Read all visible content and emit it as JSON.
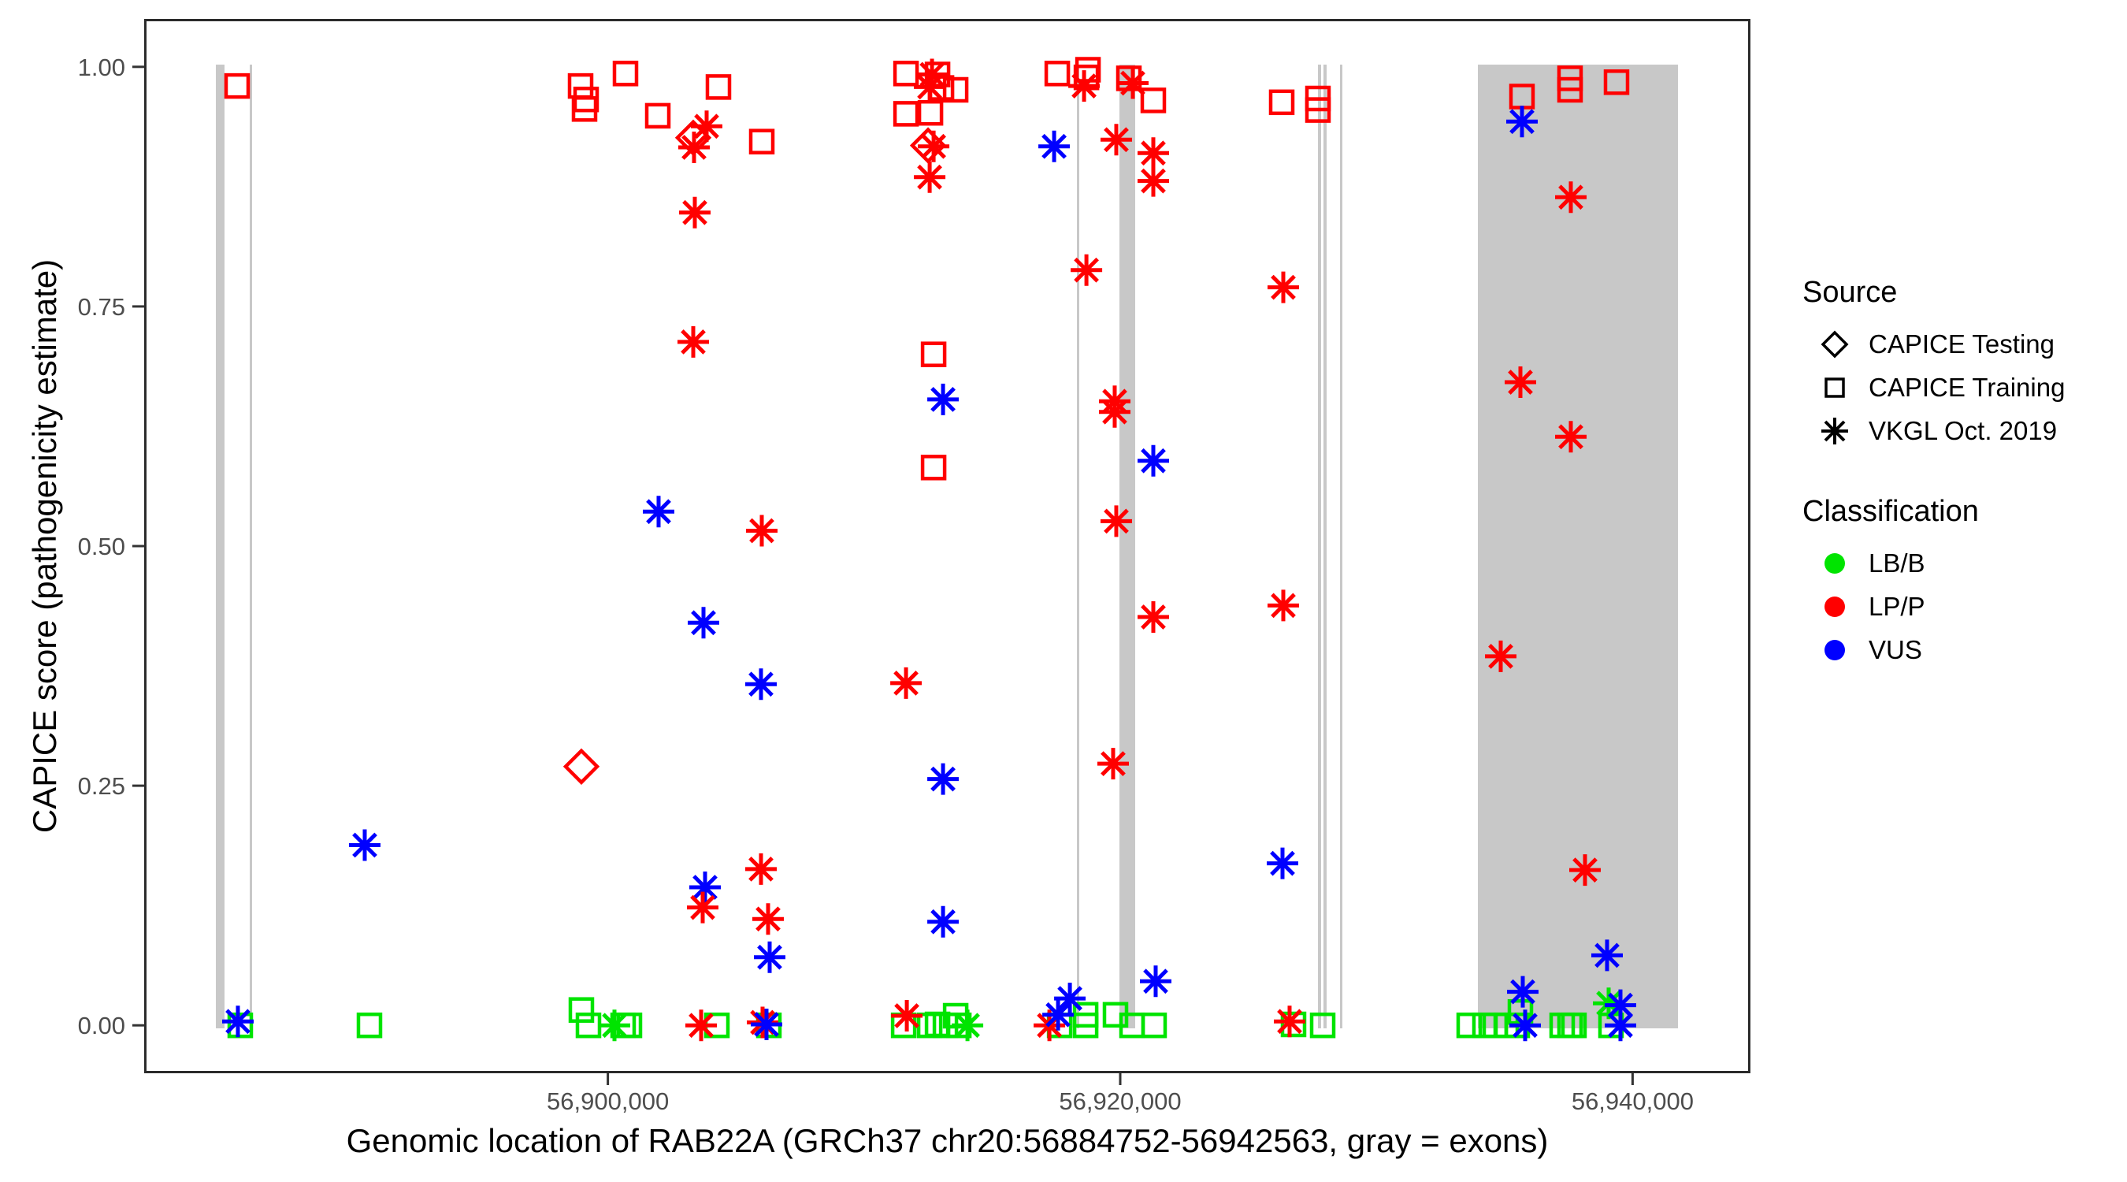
{
  "figure": {
    "x_axis_title": "Genomic location of RAB22A (GRCh37 chr20:56884752-56942563, gray = exons)",
    "y_axis_title": "CAPICE score (pathogenicity estimate)"
  },
  "legend": {
    "source_title": "Source",
    "source_items": [
      {
        "label": "CAPICE Testing",
        "shape": "diamond"
      },
      {
        "label": "CAPICE Training",
        "shape": "square"
      },
      {
        "label": "VKGL Oct. 2019",
        "shape": "asterisk"
      }
    ],
    "classification_title": "Classification",
    "classification_items": [
      {
        "label": "LB/B",
        "color": "#00E400"
      },
      {
        "label": "LP/P",
        "color": "#FF0000"
      },
      {
        "label": "VUS",
        "color": "#0000FF"
      }
    ]
  },
  "colors": {
    "exon_gray": "#C8C8C8",
    "axis": "#333333",
    "tick_text": "#4d4d4d",
    "lbb_green": "#00E400",
    "lpp_red": "#FF0000",
    "vus_blue": "#0000FF"
  },
  "chart_data": {
    "type": "scatter",
    "title": "",
    "xlabel": "Genomic location of RAB22A (GRCh37 chr20:56884752-56942563, gray = exons)",
    "ylabel": "CAPICE score (pathogenicity estimate)",
    "x_domain": [
      56881900,
      56944600
    ],
    "y_domain": [
      -0.05,
      1.05
    ],
    "x_ticks": [
      {
        "value": 56900000,
        "label": "56,900,000"
      },
      {
        "value": 56920000,
        "label": "56,920,000"
      },
      {
        "value": 56940000,
        "label": "56,940,000"
      }
    ],
    "y_ticks": [
      {
        "value": 0.0,
        "label": "0.00"
      },
      {
        "value": 0.25,
        "label": "0.25"
      },
      {
        "value": 0.5,
        "label": "0.50"
      },
      {
        "value": 0.75,
        "label": "0.75"
      },
      {
        "value": 1.0,
        "label": "1.00"
      }
    ],
    "grid": false,
    "legend_position": "right",
    "source_codes": {
      "TE": "CAPICE Testing",
      "TR": "CAPICE Training",
      "VK": "VKGL Oct. 2019"
    },
    "shape_by_source": {
      "CAPICE Testing": "diamond",
      "CAPICE Training": "square",
      "VKGL Oct. 2019": "asterisk"
    },
    "class_codes": {
      "LBB": "LB/B",
      "LPP": "LP/P",
      "VUS": "VUS"
    },
    "color_by_class": {
      "LB/B": "#00E400",
      "LP/P": "#FF0000",
      "VUS": "#0000FF"
    },
    "gene": {
      "name": "RAB22A",
      "assembly": "GRCh37",
      "chrom": "chr20",
      "start": 56884752,
      "end": 56942563
    },
    "exons_bp": [
      [
        56884698,
        56885036
      ],
      [
        56886020,
        56886097
      ],
      [
        56918307,
        56918384
      ],
      [
        56919968,
        56920583
      ],
      [
        56927718,
        56927825
      ],
      [
        56927933,
        56928041
      ],
      [
        56928579,
        56928671
      ],
      [
        56933960,
        56941770
      ]
    ],
    "points": [
      {
        "bp": 56885529,
        "score": 0.98,
        "src": "TR",
        "cls": "LPP"
      },
      {
        "bp": 56885560,
        "score": 0.004,
        "src": "VK",
        "cls": "VUS"
      },
      {
        "bp": 56885652,
        "score": 0.0,
        "src": "TR",
        "cls": "LBB"
      },
      {
        "bp": 56890510,
        "score": 0.188,
        "src": "VK",
        "cls": "VUS"
      },
      {
        "bp": 56890695,
        "score": 0.0,
        "src": "TR",
        "cls": "LBB"
      },
      {
        "bp": 56900688,
        "score": 0.993,
        "src": "TR",
        "cls": "LPP"
      },
      {
        "bp": 56898936,
        "score": 0.98,
        "src": "TR",
        "cls": "LPP"
      },
      {
        "bp": 56899151,
        "score": 0.966,
        "src": "TR",
        "cls": "LPP"
      },
      {
        "bp": 56899089,
        "score": 0.956,
        "src": "TR",
        "cls": "LPP"
      },
      {
        "bp": 56904317,
        "score": 0.979,
        "src": "TR",
        "cls": "LPP"
      },
      {
        "bp": 56901949,
        "score": 0.949,
        "src": "TR",
        "cls": "LPP"
      },
      {
        "bp": 56903856,
        "score": 0.938,
        "src": "VK",
        "cls": "LPP"
      },
      {
        "bp": 56903333,
        "score": 0.926,
        "src": "TE",
        "cls": "LPP"
      },
      {
        "bp": 56903364,
        "score": 0.916,
        "src": "VK",
        "cls": "LPP"
      },
      {
        "bp": 56906008,
        "score": 0.922,
        "src": "TR",
        "cls": "LPP"
      },
      {
        "bp": 56903395,
        "score": 0.848,
        "src": "VK",
        "cls": "LPP"
      },
      {
        "bp": 56903333,
        "score": 0.713,
        "src": "VK",
        "cls": "LPP"
      },
      {
        "bp": 56901980,
        "score": 0.536,
        "src": "VK",
        "cls": "VUS"
      },
      {
        "bp": 56906008,
        "score": 0.516,
        "src": "VK",
        "cls": "LPP"
      },
      {
        "bp": 56903733,
        "score": 0.42,
        "src": "VK",
        "cls": "VUS"
      },
      {
        "bp": 56905977,
        "score": 0.356,
        "src": "VK",
        "cls": "VUS"
      },
      {
        "bp": 56898966,
        "score": 0.27,
        "src": "TE",
        "cls": "LPP"
      },
      {
        "bp": 56905977,
        "score": 0.163,
        "src": "VK",
        "cls": "LPP"
      },
      {
        "bp": 56903794,
        "score": 0.144,
        "src": "VK",
        "cls": "VUS"
      },
      {
        "bp": 56903702,
        "score": 0.123,
        "src": "VK",
        "cls": "LPP"
      },
      {
        "bp": 56906254,
        "score": 0.111,
        "src": "VK",
        "cls": "LPP"
      },
      {
        "bp": 56906315,
        "score": 0.071,
        "src": "VK",
        "cls": "VUS"
      },
      {
        "bp": 56898966,
        "score": 0.016,
        "src": "TR",
        "cls": "LBB"
      },
      {
        "bp": 56899243,
        "score": 0.0,
        "src": "TR",
        "cls": "LBB"
      },
      {
        "bp": 56900257,
        "score": 0.0,
        "src": "VK",
        "cls": "LBB"
      },
      {
        "bp": 56900596,
        "score": 0.0,
        "src": "TR",
        "cls": "LBB"
      },
      {
        "bp": 56900842,
        "score": 0.0,
        "src": "TR",
        "cls": "LBB"
      },
      {
        "bp": 56903640,
        "score": 0.0,
        "src": "VK",
        "cls": "LPP"
      },
      {
        "bp": 56904255,
        "score": 0.0,
        "src": "TR",
        "cls": "LBB"
      },
      {
        "bp": 56906039,
        "score": 0.003,
        "src": "VK",
        "cls": "LPP"
      },
      {
        "bp": 56906192,
        "score": 0.001,
        "src": "VK",
        "cls": "VUS"
      },
      {
        "bp": 56906285,
        "score": 0.0,
        "src": "TR",
        "cls": "LBB"
      },
      {
        "bp": 56911639,
        "score": 0.993,
        "src": "TR",
        "cls": "LPP"
      },
      {
        "bp": 56912869,
        "score": 0.992,
        "src": "TR",
        "cls": "LPP"
      },
      {
        "bp": 56912654,
        "score": 0.992,
        "src": "VK",
        "cls": "LPP"
      },
      {
        "bp": 56912562,
        "score": 0.979,
        "src": "VK",
        "cls": "LPP"
      },
      {
        "bp": 56913023,
        "score": 0.978,
        "src": "TR",
        "cls": "LPP"
      },
      {
        "bp": 56913576,
        "score": 0.976,
        "src": "TR",
        "cls": "LPP"
      },
      {
        "bp": 56911639,
        "score": 0.951,
        "src": "TR",
        "cls": "LPP"
      },
      {
        "bp": 56912592,
        "score": 0.952,
        "src": "TR",
        "cls": "LPP"
      },
      {
        "bp": 56912500,
        "score": 0.918,
        "src": "TE",
        "cls": "LPP"
      },
      {
        "bp": 56912715,
        "score": 0.917,
        "src": "VK",
        "cls": "LPP"
      },
      {
        "bp": 56912562,
        "score": 0.885,
        "src": "VK",
        "cls": "LPP"
      },
      {
        "bp": 56917543,
        "score": 0.993,
        "src": "TR",
        "cls": "LPP"
      },
      {
        "bp": 56918742,
        "score": 0.997,
        "src": "TR",
        "cls": "LPP"
      },
      {
        "bp": 56918681,
        "score": 0.989,
        "src": "TR",
        "cls": "LPP"
      },
      {
        "bp": 56918589,
        "score": 0.98,
        "src": "VK",
        "cls": "LPP"
      },
      {
        "bp": 56917420,
        "score": 0.917,
        "src": "VK",
        "cls": "VUS"
      },
      {
        "bp": 56912715,
        "score": 0.7,
        "src": "TR",
        "cls": "LPP"
      },
      {
        "bp": 56913084,
        "score": 0.653,
        "src": "VK",
        "cls": "VUS"
      },
      {
        "bp": 56912715,
        "score": 0.582,
        "src": "TR",
        "cls": "LPP"
      },
      {
        "bp": 56911639,
        "score": 0.357,
        "src": "VK",
        "cls": "LPP"
      },
      {
        "bp": 56913084,
        "score": 0.257,
        "src": "VK",
        "cls": "VUS"
      },
      {
        "bp": 56913084,
        "score": 0.108,
        "src": "VK",
        "cls": "VUS"
      },
      {
        "bp": 56920338,
        "score": 0.988,
        "src": "TR",
        "cls": "LPP"
      },
      {
        "bp": 56920491,
        "score": 0.983,
        "src": "VK",
        "cls": "LPP"
      },
      {
        "bp": 56921291,
        "score": 0.965,
        "src": "TR",
        "cls": "LPP"
      },
      {
        "bp": 56919846,
        "score": 0.924,
        "src": "VK",
        "cls": "LPP"
      },
      {
        "bp": 56921291,
        "score": 0.91,
        "src": "VK",
        "cls": "LPP"
      },
      {
        "bp": 56921291,
        "score": 0.881,
        "src": "VK",
        "cls": "LPP"
      },
      {
        "bp": 56918681,
        "score": 0.788,
        "src": "VK",
        "cls": "LPP"
      },
      {
        "bp": 56919785,
        "score": 0.651,
        "src": "VK",
        "cls": "LPP"
      },
      {
        "bp": 56919785,
        "score": 0.64,
        "src": "VK",
        "cls": "LPP"
      },
      {
        "bp": 56921291,
        "score": 0.589,
        "src": "VK",
        "cls": "VUS"
      },
      {
        "bp": 56919846,
        "score": 0.526,
        "src": "VK",
        "cls": "LPP"
      },
      {
        "bp": 56921291,
        "score": 0.426,
        "src": "VK",
        "cls": "LPP"
      },
      {
        "bp": 56919723,
        "score": 0.273,
        "src": "VK",
        "cls": "LPP"
      },
      {
        "bp": 56921383,
        "score": 0.046,
        "src": "VK",
        "cls": "VUS"
      },
      {
        "bp": 56919815,
        "score": 0.011,
        "src": "TR",
        "cls": "LBB"
      },
      {
        "bp": 56920461,
        "score": 0.0,
        "src": "TR",
        "cls": "LBB"
      },
      {
        "bp": 56921322,
        "score": 0.0,
        "src": "TR",
        "cls": "LBB"
      },
      {
        "bp": 56911670,
        "score": 0.01,
        "src": "VK",
        "cls": "LPP"
      },
      {
        "bp": 56911547,
        "score": 0.0,
        "src": "TR",
        "cls": "LBB"
      },
      {
        "bp": 56912562,
        "score": 0.0,
        "src": "TR",
        "cls": "LBB"
      },
      {
        "bp": 56912869,
        "score": 0.001,
        "src": "TR",
        "cls": "LBB"
      },
      {
        "bp": 56913177,
        "score": 0.0,
        "src": "TR",
        "cls": "LBB"
      },
      {
        "bp": 56913576,
        "score": 0.01,
        "src": "TR",
        "cls": "LBB"
      },
      {
        "bp": 56913699,
        "score": 0.0,
        "src": "TR",
        "cls": "LBB"
      },
      {
        "bp": 56914037,
        "score": 0.0,
        "src": "VK",
        "cls": "LBB"
      },
      {
        "bp": 56917235,
        "score": 0.0,
        "src": "VK",
        "cls": "LPP"
      },
      {
        "bp": 56917573,
        "score": 0.011,
        "src": "VK",
        "cls": "VUS"
      },
      {
        "bp": 56918035,
        "score": 0.028,
        "src": "VK",
        "cls": "VUS"
      },
      {
        "bp": 56917635,
        "score": 0.0,
        "src": "TR",
        "cls": "LBB"
      },
      {
        "bp": 56918650,
        "score": 0.011,
        "src": "TR",
        "cls": "LBB"
      },
      {
        "bp": 56918650,
        "score": 0.0,
        "src": "TR",
        "cls": "LBB"
      },
      {
        "bp": 56926303,
        "score": 0.963,
        "src": "TR",
        "cls": "LPP"
      },
      {
        "bp": 56927718,
        "score": 0.967,
        "src": "TR",
        "cls": "LPP"
      },
      {
        "bp": 56927718,
        "score": 0.955,
        "src": "TR",
        "cls": "LPP"
      },
      {
        "bp": 56926365,
        "score": 0.77,
        "src": "VK",
        "cls": "LPP"
      },
      {
        "bp": 56926365,
        "score": 0.438,
        "src": "VK",
        "cls": "LPP"
      },
      {
        "bp": 56926334,
        "score": 0.169,
        "src": "VK",
        "cls": "VUS"
      },
      {
        "bp": 56926611,
        "score": 0.004,
        "src": "VK",
        "cls": "LPP"
      },
      {
        "bp": 56926764,
        "score": 0.001,
        "src": "TR",
        "cls": "LBB"
      },
      {
        "bp": 56927902,
        "score": 0.0,
        "src": "TR",
        "cls": "LBB"
      },
      {
        "bp": 56935682,
        "score": 0.969,
        "src": "TR",
        "cls": "LPP"
      },
      {
        "bp": 56935682,
        "score": 0.943,
        "src": "VK",
        "cls": "VUS"
      },
      {
        "bp": 56937558,
        "score": 0.988,
        "src": "TR",
        "cls": "LPP"
      },
      {
        "bp": 56937558,
        "score": 0.976,
        "src": "TR",
        "cls": "LPP"
      },
      {
        "bp": 56939372,
        "score": 0.984,
        "src": "TR",
        "cls": "LPP"
      },
      {
        "bp": 56937588,
        "score": 0.864,
        "src": "VK",
        "cls": "LPP"
      },
      {
        "bp": 56935620,
        "score": 0.671,
        "src": "VK",
        "cls": "LPP"
      },
      {
        "bp": 56937588,
        "score": 0.614,
        "src": "VK",
        "cls": "LPP"
      },
      {
        "bp": 56934852,
        "score": 0.385,
        "src": "VK",
        "cls": "LPP"
      },
      {
        "bp": 56938142,
        "score": 0.162,
        "src": "VK",
        "cls": "LPP"
      },
      {
        "bp": 56939003,
        "score": 0.073,
        "src": "VK",
        "cls": "VUS"
      },
      {
        "bp": 56933622,
        "score": 0.0,
        "src": "TR",
        "cls": "LBB"
      },
      {
        "bp": 56934237,
        "score": 0.0,
        "src": "TR",
        "cls": "LBB"
      },
      {
        "bp": 56934636,
        "score": 0.0,
        "src": "TR",
        "cls": "LBB"
      },
      {
        "bp": 56935067,
        "score": 0.0,
        "src": "TR",
        "cls": "LBB"
      },
      {
        "bp": 56935497,
        "score": 0.0,
        "src": "TR",
        "cls": "LBB"
      },
      {
        "bp": 56935620,
        "score": 0.014,
        "src": "TR",
        "cls": "LBB"
      },
      {
        "bp": 56935713,
        "score": 0.035,
        "src": "VK",
        "cls": "VUS"
      },
      {
        "bp": 56935805,
        "score": 0.0,
        "src": "VK",
        "cls": "VUS"
      },
      {
        "bp": 56937251,
        "score": 0.0,
        "src": "TR",
        "cls": "LBB"
      },
      {
        "bp": 56937558,
        "score": 0.0,
        "src": "TR",
        "cls": "LBB"
      },
      {
        "bp": 56937712,
        "score": 0.0,
        "src": "TR",
        "cls": "LBB"
      },
      {
        "bp": 56939064,
        "score": 0.023,
        "src": "VK",
        "cls": "LBB"
      },
      {
        "bp": 56939526,
        "score": 0.021,
        "src": "VK",
        "cls": "VUS"
      },
      {
        "bp": 56939157,
        "score": 0.0,
        "src": "TR",
        "cls": "LBB"
      },
      {
        "bp": 56939526,
        "score": 0.0,
        "src": "VK",
        "cls": "VUS"
      }
    ]
  }
}
